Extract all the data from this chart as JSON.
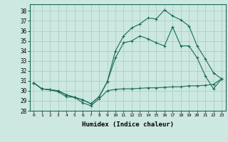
{
  "title": "",
  "xlabel": "Humidex (Indice chaleur)",
  "background_color": "#cce8e0",
  "grid_color": "#aacfc8",
  "line_color": "#1a6b5a",
  "xlim": [
    -0.5,
    23.5
  ],
  "ylim": [
    28,
    38.67
  ],
  "yticks": [
    28,
    29,
    30,
    31,
    32,
    33,
    34,
    35,
    36,
    37,
    38
  ],
  "xticks": [
    0,
    1,
    2,
    3,
    4,
    5,
    6,
    7,
    8,
    9,
    10,
    11,
    12,
    13,
    14,
    15,
    16,
    17,
    18,
    19,
    20,
    21,
    22,
    23
  ],
  "line1_x": [
    0,
    1,
    2,
    3,
    4,
    5,
    6,
    7,
    8,
    9,
    10,
    11,
    12,
    13,
    14,
    15,
    16,
    17,
    18,
    19,
    20,
    21,
    22,
    23
  ],
  "line1_y": [
    30.8,
    30.2,
    30.1,
    29.9,
    29.4,
    29.35,
    28.8,
    28.5,
    29.2,
    30.0,
    30.15,
    30.2,
    30.2,
    30.25,
    30.3,
    30.3,
    30.35,
    30.4,
    30.4,
    30.5,
    30.5,
    30.55,
    30.65,
    31.2
  ],
  "line2_x": [
    0,
    1,
    2,
    3,
    4,
    5,
    6,
    7,
    8,
    9,
    10,
    11,
    12,
    13,
    14,
    15,
    16,
    17,
    18,
    19,
    20,
    21,
    22,
    23
  ],
  "line2_y": [
    30.8,
    30.2,
    30.1,
    30.0,
    29.6,
    29.35,
    29.1,
    28.7,
    29.4,
    30.9,
    33.3,
    34.8,
    35.0,
    35.5,
    35.2,
    34.8,
    34.5,
    36.4,
    34.5,
    34.5,
    33.3,
    31.5,
    30.2,
    31.2
  ],
  "line3_x": [
    0,
    1,
    2,
    3,
    4,
    5,
    6,
    7,
    8,
    9,
    10,
    11,
    12,
    13,
    14,
    15,
    16,
    17,
    18,
    19,
    20,
    21,
    22,
    23
  ],
  "line3_y": [
    30.8,
    30.2,
    30.1,
    30.0,
    29.6,
    29.35,
    29.1,
    28.7,
    29.4,
    30.9,
    34.0,
    35.5,
    36.3,
    36.7,
    37.3,
    37.2,
    38.1,
    37.5,
    37.1,
    36.5,
    34.5,
    33.2,
    31.8,
    31.2
  ]
}
